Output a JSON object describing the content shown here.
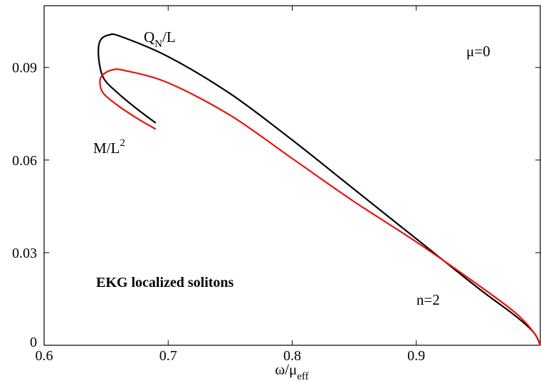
{
  "chart_data": {
    "type": "line",
    "xlabel": "ω/μ",
    "xlabel_sub": "eff",
    "ylabel": "",
    "xlim": [
      0.6,
      1.0
    ],
    "ylim": [
      0,
      0.11
    ],
    "grid": false,
    "x_ticks": [
      "0.6",
      "0.7",
      "0.8",
      "0.9"
    ],
    "y_ticks": [
      "0",
      "0.03",
      "0.06",
      "0.09"
    ],
    "annotations": {
      "mu": "μ=0",
      "n": "n=2",
      "system": "EKG localized solitons"
    },
    "series": [
      {
        "name": "QN/L",
        "label_main": "Q",
        "label_sub": "N",
        "label_tail": "/L",
        "color": "#000000",
        "x": [
          0.69,
          0.675,
          0.66,
          0.648,
          0.644,
          0.645,
          0.652,
          0.662,
          0.7,
          0.75,
          0.8,
          0.85,
          0.9,
          0.95,
          0.98,
          0.995,
          1.0
        ],
        "y": [
          0.072,
          0.0765,
          0.0815,
          0.0865,
          0.093,
          0.0985,
          0.1005,
          0.1,
          0.0935,
          0.0815,
          0.0665,
          0.0505,
          0.0345,
          0.0185,
          0.0095,
          0.004,
          0.0
        ]
      },
      {
        "name": "M/L2",
        "label_main": "M/L",
        "label_sup": "2",
        "color": "#e8140c",
        "x": [
          0.69,
          0.675,
          0.66,
          0.648,
          0.645,
          0.647,
          0.655,
          0.665,
          0.7,
          0.75,
          0.8,
          0.85,
          0.9,
          0.95,
          0.98,
          0.995,
          1.0
        ],
        "y": [
          0.07,
          0.0735,
          0.0775,
          0.0815,
          0.085,
          0.0875,
          0.0892,
          0.089,
          0.085,
          0.0745,
          0.0605,
          0.0465,
          0.0335,
          0.0195,
          0.0105,
          0.004,
          0.0
        ]
      }
    ]
  }
}
